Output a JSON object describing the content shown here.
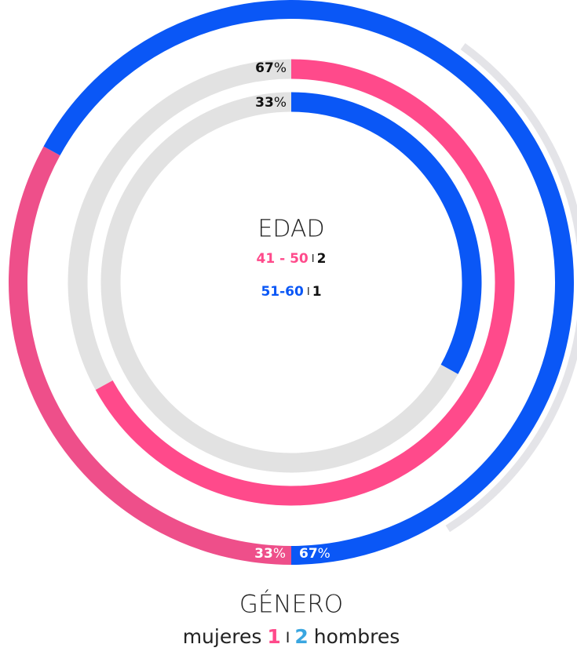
{
  "chart_data": {
    "type": "ring",
    "unit": "%",
    "separator": "I",
    "edad": {
      "title": "EDAD",
      "series": [
        {
          "name": "41 - 50",
          "count": 2,
          "percent": 67,
          "color": "#ff4a8b"
        },
        {
          "name": "51-60",
          "count": 1,
          "percent": 33,
          "color": "#0a57f6"
        }
      ]
    },
    "genero": {
      "title": "GÉNERO",
      "series": [
        {
          "name": "mujeres",
          "count": 1,
          "percent": 33,
          "color": "#ee4f8a",
          "count_color": "#ff4a8b"
        },
        {
          "name": "hombres",
          "count": 2,
          "percent": 67,
          "color": "#0a57f6",
          "count_color": "#3aa6e0"
        }
      ]
    },
    "track_color": "#e2e2e2"
  }
}
